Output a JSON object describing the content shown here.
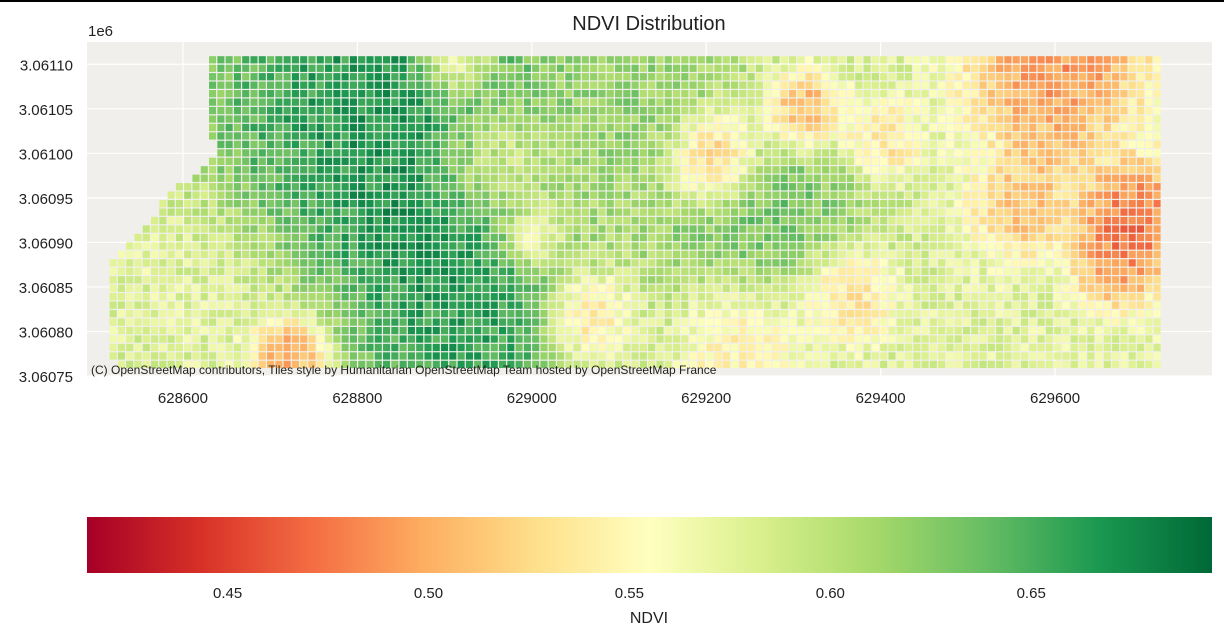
{
  "chart_data": {
    "type": "heatmap",
    "title": "NDVI Distribution",
    "x_tick_labels": [
      "628600",
      "628800",
      "629000",
      "629200",
      "629400",
      "629600"
    ],
    "x_ticks": [
      628600,
      628800,
      629000,
      629200,
      629400,
      629600
    ],
    "xlim": [
      628490,
      629780
    ],
    "y_offset_label": "1e6",
    "y_tick_labels": [
      "3.06110",
      "3.06105",
      "3.06100",
      "3.06095",
      "3.06090",
      "3.06085",
      "3.06080",
      "3.06075"
    ],
    "y_ticks": [
      3.0611,
      3.06105,
      3.061,
      3.06095,
      3.0609,
      3.06085,
      3.0608,
      3.06075
    ],
    "ylim": [
      3.06075,
      3.061125
    ],
    "grid": true,
    "attribution": "(C) OpenStreetMap contributors, Tiles style by Humanitarian OpenStreetMap Team hosted by OpenStreetMap France",
    "colormap": "RdYlGn",
    "colormap_stops": [
      "#a50026",
      "#d73027",
      "#f46d43",
      "#fdae61",
      "#fee08b",
      "#ffffbf",
      "#d9ef8b",
      "#a6d96a",
      "#66bd63",
      "#1a9850",
      "#006837"
    ],
    "colorbar": {
      "label": "NDVI",
      "range": [
        0.415,
        0.695
      ],
      "tick_labels": [
        "0.45",
        "0.50",
        "0.55",
        "0.60",
        "0.65"
      ],
      "ticks": [
        0.45,
        0.5,
        0.55,
        0.6,
        0.65
      ]
    },
    "value_range": [
      0.415,
      0.695
    ],
    "grid_x_range": [
      628520,
      629720
    ],
    "grid_y_range": [
      3.060755,
      3.061105
    ],
    "cell_size_m": 9.5,
    "field_boundary_left_x": [
      [
        3.061105,
        628630
      ],
      [
        3.061015,
        628630
      ],
      [
        3.061003,
        628640
      ],
      [
        3.060985,
        628625
      ],
      [
        3.06096,
        628590
      ],
      [
        3.060935,
        628570
      ],
      [
        3.060905,
        628540
      ],
      [
        3.06088,
        628520
      ],
      [
        3.06084,
        628505
      ],
      [
        3.06079,
        628510
      ],
      [
        3.060755,
        628530
      ]
    ],
    "field_boundary_right_x": 629720,
    "blobs_description_note": "",
    "ndvi_features": [
      {
        "x": 628850,
        "y": 3.061095,
        "value": 0.69,
        "radius": 90
      },
      {
        "x": 628880,
        "y": 3.060935,
        "value": 0.69,
        "radius": 70
      },
      {
        "x": 628930,
        "y": 3.0608,
        "value": 0.68,
        "radius": 80
      },
      {
        "x": 628760,
        "y": 3.061,
        "value": 0.67,
        "radius": 80
      },
      {
        "x": 629260,
        "y": 3.060935,
        "value": 0.65,
        "radius": 70
      },
      {
        "x": 629120,
        "y": 3.061065,
        "value": 0.63,
        "radius": 60
      },
      {
        "x": 629210,
        "y": 3.060995,
        "value": 0.43,
        "radius": 30
      },
      {
        "x": 629310,
        "y": 3.061045,
        "value": 0.45,
        "radius": 25
      },
      {
        "x": 628720,
        "y": 3.060775,
        "value": 0.44,
        "radius": 25
      },
      {
        "x": 628910,
        "y": 3.061103,
        "value": 0.47,
        "radius": 25
      },
      {
        "x": 629600,
        "y": 3.061103,
        "value": 0.46,
        "radius": 55
      },
      {
        "x": 629690,
        "y": 3.060925,
        "value": 0.44,
        "radius": 35
      },
      {
        "x": 629670,
        "y": 3.060875,
        "value": 0.47,
        "radius": 25
      },
      {
        "x": 629060,
        "y": 3.060815,
        "value": 0.49,
        "radius": 30
      },
      {
        "x": 629360,
        "y": 3.060845,
        "value": 0.5,
        "radius": 30
      },
      {
        "x": 629560,
        "y": 3.06094,
        "value": 0.49,
        "radius": 30
      },
      {
        "x": 629400,
        "y": 3.061015,
        "value": 0.51,
        "radius": 25
      },
      {
        "x": 629000,
        "y": 3.060905,
        "value": 0.5,
        "radius": 20
      },
      {
        "x": 629590,
        "y": 3.061005,
        "value": 0.5,
        "radius": 25
      },
      {
        "x": 629240,
        "y": 3.060795,
        "value": 0.52,
        "radius": 40
      },
      {
        "x": 628950,
        "y": 3.060985,
        "value": 0.53,
        "radius": 40
      },
      {
        "x": 628600,
        "y": 3.06085,
        "value": 0.57,
        "radius": 80
      }
    ]
  }
}
